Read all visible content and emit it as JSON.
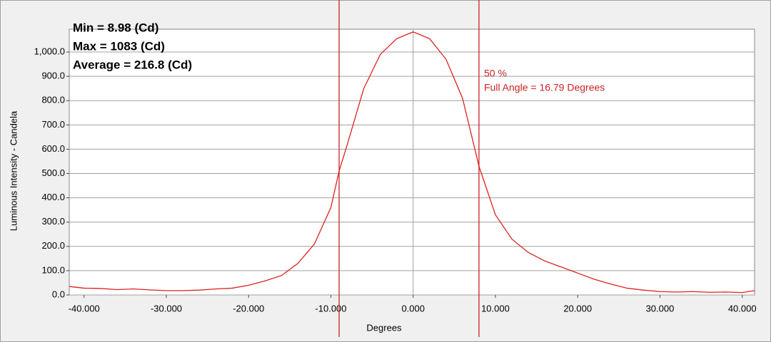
{
  "chart_data": {
    "type": "line",
    "x_label": "Degrees",
    "y_label": "Luminous Intensity - Candela",
    "annotations": [
      "Min = 8.98 (Cd)",
      "Max = 1083 (Cd)",
      "Average = 216.8 (Cd)"
    ],
    "marker_labels": [
      "50 %",
      "Full Angle = 16.79 Degrees"
    ],
    "marker_color": "#cc2222",
    "markers": [
      -9.0,
      8.0
    ],
    "x": [
      -41.8,
      -40,
      -38,
      -36,
      -34,
      -32,
      -30,
      -28,
      -26,
      -24,
      -22,
      -20,
      -18,
      -16,
      -14,
      -12,
      -10,
      -9,
      -8,
      -6,
      -4,
      -2,
      0,
      2,
      4,
      6,
      8,
      10,
      12,
      14,
      16,
      18,
      20,
      22,
      24,
      26,
      28,
      30,
      32,
      34,
      36,
      38,
      40,
      41.5
    ],
    "series": [
      {
        "color": "#dd2222",
        "values": [
          35,
          28,
          27,
          22,
          25,
          21,
          18,
          18,
          20,
          25,
          28,
          40,
          58,
          80,
          130,
          210,
          360,
          510,
          620,
          850,
          990,
          1055,
          1083,
          1055,
          970,
          810,
          530,
          330,
          230,
          175,
          140,
          115,
          90,
          65,
          45,
          28,
          20,
          14,
          12,
          14,
          11,
          12,
          10,
          18
        ]
      }
    ],
    "xlim": [
      -41.8,
      41.5
    ],
    "ylim": [
      0,
      1094
    ],
    "xticks": [
      {
        "value": -40,
        "label": "-40.000"
      },
      {
        "value": -30,
        "label": "-30.000"
      },
      {
        "value": -20,
        "label": "-20.000"
      },
      {
        "value": -10,
        "label": "-10.000"
      },
      {
        "value": 0,
        "label": "0.000"
      },
      {
        "value": 10,
        "label": "10.000"
      },
      {
        "value": 20,
        "label": "20.000"
      },
      {
        "value": 30,
        "label": "30.000"
      },
      {
        "value": 40,
        "label": "40.000"
      }
    ],
    "yticks": [
      {
        "value": 0,
        "label": "0.0"
      },
      {
        "value": 100,
        "label": "100.0"
      },
      {
        "value": 200,
        "label": "200.0"
      },
      {
        "value": 300,
        "label": "300.0"
      },
      {
        "value": 400,
        "label": "400.0"
      },
      {
        "value": 500,
        "label": "500.0"
      },
      {
        "value": 600,
        "label": "600.0"
      },
      {
        "value": 700,
        "label": "700.0"
      },
      {
        "value": 800,
        "label": "800.0"
      },
      {
        "value": 900,
        "label": "900.0"
      },
      {
        "value": 1000,
        "label": "1,000.0"
      }
    ],
    "grid": true
  }
}
